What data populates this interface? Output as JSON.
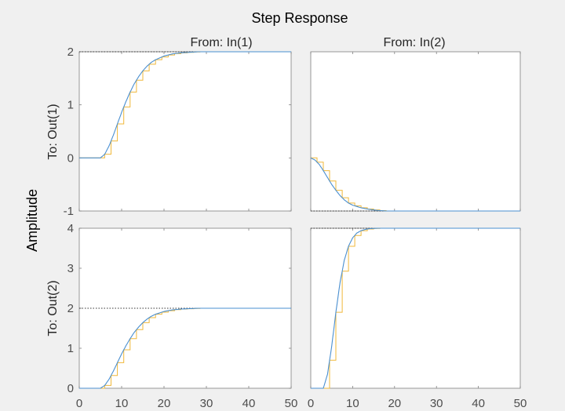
{
  "chart_data": {
    "type": "line",
    "title": "Step Response",
    "ylabel": "Amplitude",
    "column_labels": [
      "From: In(1)",
      "From: In(2)"
    ],
    "row_labels": [
      "To: Out(1)",
      "To: Out(2)"
    ],
    "xlim": [
      0,
      50
    ],
    "x_ticks": [
      0,
      10,
      20,
      30,
      40,
      50
    ],
    "colors": {
      "continuous": "#4a8fd0",
      "discrete": "#f0b83a",
      "reference": "#333333",
      "axes_border": "#808080",
      "background": "#f0f0f0"
    },
    "series_styles": [
      {
        "kind": "continuous step response",
        "style": "solid line"
      },
      {
        "kind": "discrete step response",
        "style": "staircase"
      },
      {
        "kind": "steady-state level",
        "style": "dotted line"
      }
    ],
    "sample_time": 1.5,
    "panels": [
      {
        "row": 0,
        "col": 0,
        "ylim": [
          -1,
          2
        ],
        "y_ticks": [
          -1,
          0,
          1,
          2
        ],
        "steady_state": 2,
        "response": {
          "x": [
            0,
            5,
            6,
            7,
            8,
            9,
            10,
            11,
            12,
            13,
            14,
            15,
            16,
            17,
            18,
            20,
            22,
            24,
            26,
            28,
            30,
            35,
            40,
            45,
            50
          ],
          "y": [
            0,
            0,
            0.07,
            0.22,
            0.42,
            0.64,
            0.86,
            1.06,
            1.24,
            1.4,
            1.53,
            1.64,
            1.73,
            1.8,
            1.85,
            1.92,
            1.96,
            1.98,
            1.99,
            2.0,
            2.0,
            2.0,
            2.0,
            2.0,
            2.0
          ]
        }
      },
      {
        "row": 0,
        "col": 1,
        "ylim": [
          -1,
          2
        ],
        "y_ticks": [],
        "steady_state": -1,
        "response": {
          "x": [
            0,
            1,
            2,
            3,
            4,
            5,
            6,
            7,
            8,
            9,
            10,
            12,
            14,
            16,
            18,
            20,
            22,
            25,
            30,
            40,
            50
          ],
          "y": [
            0,
            -0.04,
            -0.12,
            -0.24,
            -0.37,
            -0.5,
            -0.61,
            -0.71,
            -0.79,
            -0.85,
            -0.89,
            -0.94,
            -0.97,
            -0.99,
            -1.0,
            -1.0,
            -1.0,
            -1.0,
            -1.0,
            -1.0,
            -1.0
          ]
        }
      },
      {
        "row": 1,
        "col": 0,
        "ylim": [
          0,
          4
        ],
        "y_ticks": [
          0,
          1,
          2,
          3,
          4
        ],
        "steady_state": 2,
        "response": {
          "x": [
            0,
            5,
            6,
            7,
            8,
            9,
            10,
            11,
            12,
            13,
            14,
            15,
            16,
            17,
            18,
            20,
            22,
            24,
            26,
            28,
            30,
            35,
            40,
            45,
            50
          ],
          "y": [
            0,
            0,
            0.07,
            0.22,
            0.42,
            0.64,
            0.86,
            1.06,
            1.24,
            1.4,
            1.53,
            1.64,
            1.73,
            1.8,
            1.85,
            1.92,
            1.96,
            1.98,
            1.99,
            2.0,
            2.0,
            2.0,
            2.0,
            2.0,
            2.0
          ]
        }
      },
      {
        "row": 1,
        "col": 1,
        "ylim": [
          0,
          4
        ],
        "y_ticks": [],
        "steady_state": 4,
        "response": {
          "x": [
            0,
            3,
            4,
            5,
            6,
            7,
            8,
            9,
            10,
            11,
            12,
            13,
            14,
            16,
            18,
            20,
            25,
            30,
            40,
            50
          ],
          "y": [
            0,
            0,
            0.35,
            1.05,
            1.9,
            2.65,
            3.2,
            3.55,
            3.76,
            3.88,
            3.94,
            3.97,
            3.99,
            4.0,
            4.0,
            4.0,
            4.0,
            4.0,
            4.0,
            4.0
          ]
        }
      }
    ]
  }
}
